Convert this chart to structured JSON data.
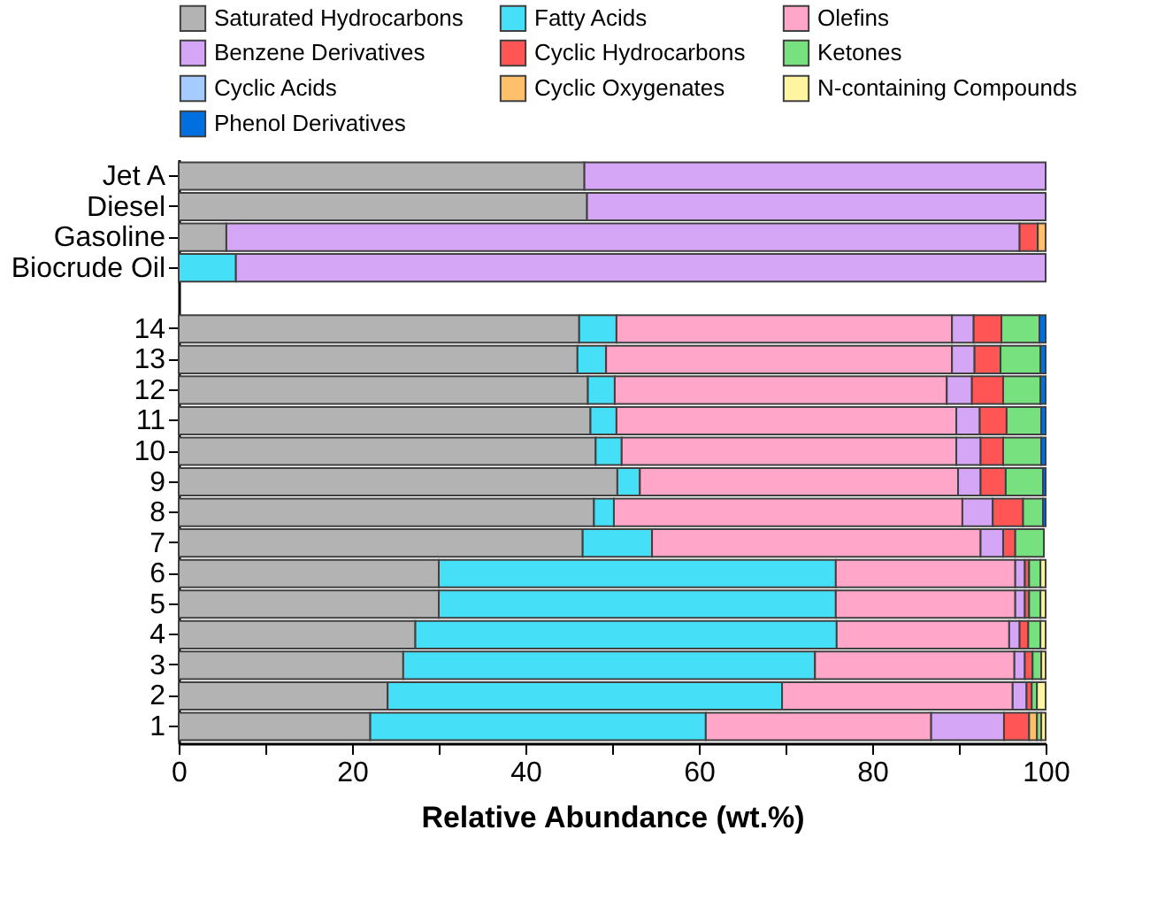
{
  "chart_data": {
    "type": "bar",
    "orientation": "horizontal",
    "stacked": true,
    "legend": "top",
    "xlabel": "Relative Abundance (wt.%)",
    "xlim": [
      0,
      100
    ],
    "xticks": [
      0,
      {
        "value": 10,
        "label": null
      },
      20,
      {
        "value": 30,
        "label": null
      },
      40,
      {
        "value": 50,
        "label": null
      },
      60,
      {
        "value": 70,
        "label": null
      },
      80,
      {
        "value": 90,
        "label": null
      },
      100
    ],
    "categories": [
      "Jet A",
      "Diesel",
      "Gasoline",
      "Biocrude Oil",
      "14",
      "13",
      "12",
      "11",
      "10",
      "9",
      "8",
      "7",
      "6",
      "5",
      "4",
      "3",
      "2",
      "1"
    ],
    "series": [
      {
        "name": "Saturated Hydrocarbons",
        "color": "#b3b3b3",
        "values": [
          46.8,
          47.1,
          5.5,
          null,
          46.2,
          46.0,
          47.2,
          47.5,
          48.1,
          50.6,
          47.9,
          46.6,
          30.0,
          30.0,
          27.3,
          25.9,
          24.1,
          22.1
        ]
      },
      {
        "name": "Fatty Acids",
        "color": "#45e0f7",
        "values": [
          null,
          null,
          null,
          6.6,
          4.3,
          3.3,
          3.1,
          3.0,
          3.0,
          2.6,
          2.3,
          8.0,
          45.8,
          45.8,
          48.6,
          47.5,
          45.5,
          38.7
        ]
      },
      {
        "name": "Olefins",
        "color": "#ffa6c9",
        "values": [
          null,
          null,
          null,
          null,
          38.7,
          39.9,
          38.3,
          39.2,
          38.6,
          36.7,
          40.2,
          37.9,
          20.7,
          20.7,
          19.9,
          23.0,
          26.6,
          26.0
        ]
      },
      {
        "name": "Benzene Derivatives",
        "color": "#d4a6f5",
        "values": [
          53.2,
          52.9,
          91.5,
          93.4,
          2.5,
          2.6,
          2.9,
          2.7,
          2.8,
          2.6,
          3.5,
          2.6,
          1.1,
          1.1,
          1.2,
          1.2,
          1.6,
          8.4
        ]
      },
      {
        "name": "Cyclic Hydrocarbons",
        "color": "#ff5555",
        "values": [
          null,
          null,
          2.1,
          null,
          3.2,
          3.0,
          3.6,
          3.1,
          2.6,
          2.9,
          3.5,
          1.4,
          0.5,
          0.5,
          1.0,
          0.9,
          0.6,
          2.9
        ]
      },
      {
        "name": "Cyclic Oxygenates",
        "color": "#ffc06b",
        "values": [
          null,
          null,
          0.9,
          null,
          null,
          null,
          null,
          null,
          null,
          null,
          null,
          null,
          null,
          null,
          null,
          null,
          null,
          0.9
        ]
      },
      {
        "name": "Ketones",
        "color": "#77e07f",
        "values": [
          null,
          null,
          null,
          null,
          4.4,
          4.6,
          4.3,
          4.0,
          4.4,
          4.3,
          2.3,
          3.3,
          1.3,
          1.3,
          1.4,
          1.0,
          0.6,
          0.5
        ]
      },
      {
        "name": "N-containing Compounds",
        "color": "#fff5a0",
        "values": [
          null,
          null,
          null,
          null,
          null,
          null,
          null,
          null,
          null,
          null,
          null,
          null,
          0.6,
          0.6,
          0.6,
          0.5,
          1.0,
          0.5
        ]
      },
      {
        "name": "Cyclic Acids",
        "color": "#a6ccff",
        "values": [
          null,
          null,
          null,
          null,
          null,
          null,
          null,
          null,
          null,
          null,
          null,
          null,
          null,
          null,
          null,
          null,
          null,
          null
        ]
      },
      {
        "name": "Phenol Derivatives",
        "color": "#0070e0",
        "values": [
          null,
          null,
          null,
          null,
          0.7,
          0.6,
          0.6,
          0.5,
          0.5,
          0.3,
          0.3,
          null,
          null,
          null,
          null,
          null,
          null,
          null
        ]
      }
    ]
  }
}
